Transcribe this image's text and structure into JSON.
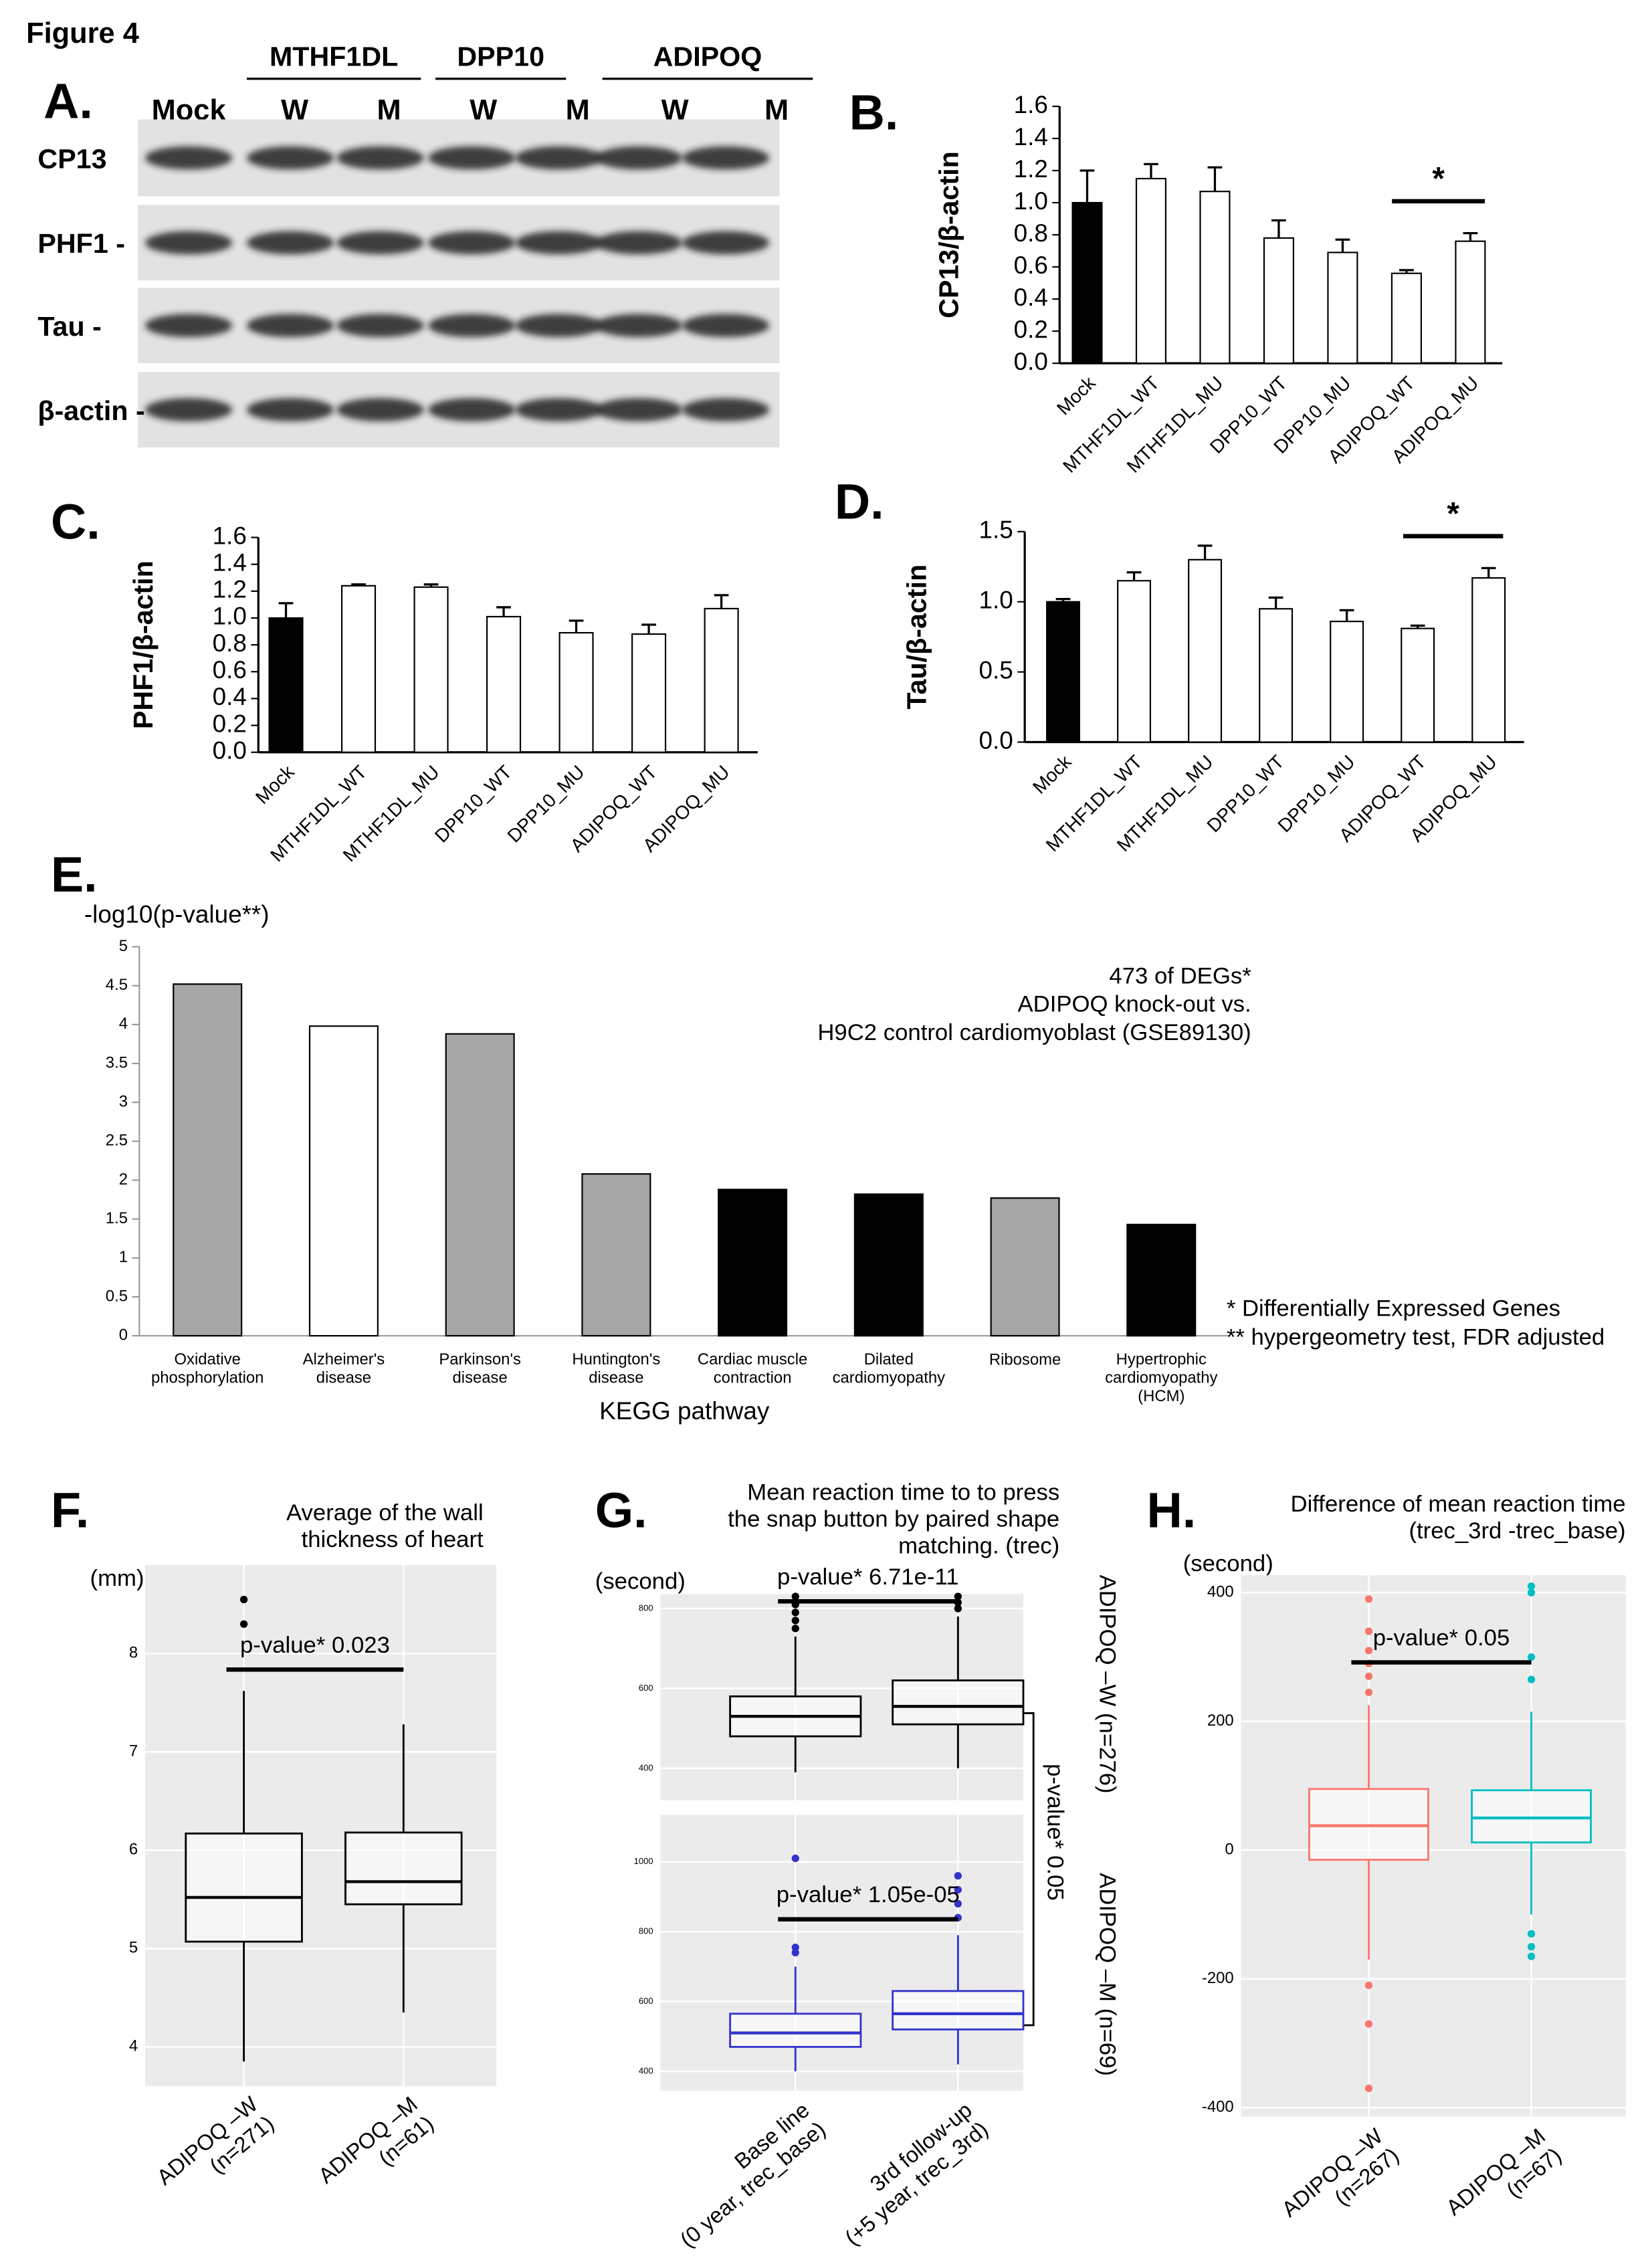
{
  "figure_title": "Figure 4",
  "blot": {
    "label": "A.",
    "groups": [
      "MTHF1DL",
      "DPP10",
      "ADIPOQ"
    ],
    "lanes": [
      "Mock",
      "W",
      "M",
      "W",
      "M",
      "W",
      "M"
    ],
    "rows": [
      "CP13",
      "PHF1 -",
      "Tau -",
      "β-actin -"
    ]
  },
  "chart_data": [
    {
      "type": "bar",
      "label": "B.",
      "ylabel": "CP13/β-actin",
      "categories": [
        "Mock",
        "MTHF1DL_WT",
        "MTHF1DL_MU",
        "DPP10_WT",
        "DPP10_MU",
        "ADIPOQ_WT",
        "ADIPOQ_MU"
      ],
      "values": [
        1.0,
        1.15,
        1.07,
        0.78,
        0.69,
        0.56,
        0.76
      ],
      "errors": [
        0.2,
        0.09,
        0.15,
        0.11,
        0.08,
        0.02,
        0.05
      ],
      "colors": [
        "#000000",
        "#ffffff",
        "#ffffff",
        "#ffffff",
        "#ffffff",
        "#ffffff",
        "#ffffff"
      ],
      "ylim": [
        0,
        1.6
      ],
      "yticks": [
        {
          "value": 0,
          "label": "0.0"
        },
        0.2,
        0.4,
        0.6,
        0.8,
        {
          "value": 1,
          "label": "1.0"
        },
        1.2,
        1.4,
        1.6
      ],
      "significance": {
        "label": "*",
        "categories": [
          "ADIPOQ_WT",
          "ADIPOQ_MU"
        ]
      }
    },
    {
      "type": "bar",
      "label": "C.",
      "ylabel": "PHF1/β-actin",
      "categories": [
        "Mock",
        "MTHF1DL_WT",
        "MTHF1DL_MU",
        "DPP10_WT",
        "DPP10_MU",
        "ADIPOQ_WT",
        "ADIPOQ_MU"
      ],
      "values": [
        1.0,
        1.24,
        1.23,
        1.01,
        0.89,
        0.88,
        1.07
      ],
      "errors": [
        0.11,
        0.01,
        0.02,
        0.07,
        0.09,
        0.07,
        0.1
      ],
      "colors": [
        "#000000",
        "#ffffff",
        "#ffffff",
        "#ffffff",
        "#ffffff",
        "#ffffff",
        "#ffffff"
      ],
      "ylim": [
        0,
        1.6
      ],
      "yticks": [
        {
          "value": 0,
          "label": "0.0"
        },
        0.2,
        0.4,
        0.6,
        0.8,
        {
          "value": 1,
          "label": "1.0"
        },
        1.2,
        1.4,
        1.6
      ]
    },
    {
      "type": "bar",
      "label": "D.",
      "ylabel": "Tau/β-actin",
      "categories": [
        "Mock",
        "MTHF1DL_WT",
        "MTHF1DL_MU",
        "DPP10_WT",
        "DPP10_MU",
        "ADIPOQ_WT",
        "ADIPOQ_MU"
      ],
      "values": [
        1.0,
        1.15,
        1.3,
        0.95,
        0.86,
        0.81,
        1.17
      ],
      "errors": [
        0.02,
        0.06,
        0.1,
        0.08,
        0.08,
        0.02,
        0.07
      ],
      "colors": [
        "#000000",
        "#ffffff",
        "#ffffff",
        "#ffffff",
        "#ffffff",
        "#ffffff",
        "#ffffff"
      ],
      "ylim": [
        0,
        1.5
      ],
      "yticks": [
        {
          "value": 0,
          "label": "0.0"
        },
        0.5,
        {
          "value": 1,
          "label": "1.0"
        },
        1.5
      ],
      "significance": {
        "label": "*",
        "categories": [
          "ADIPOQ_WT",
          "ADIPOQ_MU"
        ]
      }
    },
    {
      "type": "bar",
      "label": "E.",
      "ylabel": "-log10(p-value**)",
      "xlabel": "KEGG pathway",
      "categories": [
        "Oxidative\nphosphorylation",
        "Alzheimer's\ndisease",
        "Parkinson's\ndisease",
        "Huntington's\ndisease",
        "Cardiac muscle\ncontraction",
        "Dilated\ncardiomyopathy",
        "Ribosome",
        "Hypertrophic\ncardiomyopathy\n(HCM)"
      ],
      "values": [
        4.52,
        3.98,
        3.88,
        2.08,
        1.88,
        1.82,
        1.77,
        1.43
      ],
      "colors": [
        "#a6a6a6",
        "#ffffff",
        "#a6a6a6",
        "#a6a6a6",
        "#000000",
        "#000000",
        "#a6a6a6",
        "#000000"
      ],
      "ylim": [
        0,
        5
      ],
      "yticks": [
        0,
        0.5,
        1,
        1.5,
        2,
        2.5,
        3,
        3.5,
        4,
        4.5,
        5
      ],
      "annotations": [
        "473 of DEGs*",
        "ADIPOQ knock-out vs.",
        "H9C2 control cardiomyoblast (GSE89130)"
      ],
      "footnotes": [
        "* Differentially Expressed Genes",
        "** hypergeometry test, FDR adjusted"
      ]
    },
    {
      "type": "box",
      "label": "F.",
      "title": "Average of the wall\nthickness of heart",
      "ylabel": "(mm)",
      "categories": [
        "ADIPOQ –W\n(n=271)",
        "ADIPOQ –M\n(n=61)"
      ],
      "boxes": [
        {
          "whislo": 3.85,
          "q1": 5.07,
          "med": 5.52,
          "q3": 6.17,
          "whishi": 7.62,
          "fliers": [
            8.3,
            8.55
          ]
        },
        {
          "whislo": 4.35,
          "q1": 5.45,
          "med": 5.68,
          "q3": 6.18,
          "whishi": 7.28,
          "fliers": []
        }
      ],
      "colors": [
        "#000000",
        "#000000"
      ],
      "ylim": [
        3.6,
        8.9
      ],
      "yticks": [
        4,
        5,
        6,
        7,
        8
      ],
      "grid": true,
      "annotation": "p-value* 0.023"
    },
    {
      "type": "box",
      "label": "G.",
      "title": "Mean reaction time to to press\nthe snap button by paired shape\nmatching. (trec)",
      "ylabel": "(second)",
      "boxes": [
        {
          "whislo": 390,
          "q1": 480,
          "med": 530,
          "q3": 580,
          "whishi": 730,
          "fliers": [
            750,
            770,
            790,
            810,
            830
          ]
        },
        {
          "whislo": 400,
          "q1": 510,
          "med": 555,
          "q3": 620,
          "whishi": 780,
          "fliers": [
            800,
            815,
            830
          ]
        }
      ],
      "colors": [
        "#000000",
        "#000000"
      ],
      "ylim": [
        320,
        836
      ],
      "yticks": [
        400,
        600,
        800
      ],
      "grid": true,
      "annotation": "p-value* 6.71e-11",
      "side_label": "ADIPOQ –W (n=276)",
      "bracket_label": "p-value* 0.05"
    },
    {
      "type": "box",
      "categories": [
        "Base line\n(0 year, trec_base)",
        "3rd follow-up\n(+5 year, trec_3rd)"
      ],
      "boxes": [
        {
          "whislo": 400,
          "q1": 470,
          "med": 510,
          "q3": 565,
          "whishi": 700,
          "fliers": [
            740,
            755,
            1010
          ]
        },
        {
          "whislo": 420,
          "q1": 520,
          "med": 565,
          "q3": 630,
          "whishi": 790,
          "fliers": [
            840,
            880,
            920,
            960
          ]
        }
      ],
      "colors": [
        "#3333cc",
        "#3333cc"
      ],
      "ylim": [
        345,
        1135
      ],
      "yticks": [
        400,
        600,
        800,
        1000
      ],
      "grid": true,
      "annotation": "p-value* 1.05e-05",
      "side_label": "ADIPOQ –M (n=69)"
    },
    {
      "type": "box",
      "label": "H.",
      "title": "Difference of mean reaction time\n(trec_3rd -trec_base)",
      "ylabel": "(second)",
      "categories": [
        "ADIPOQ –W\n(n=267)",
        "ADIPOQ –M\n(n=67)"
      ],
      "boxes": [
        {
          "whislo": -170,
          "q1": -15,
          "med": 38,
          "q3": 95,
          "whishi": 225,
          "fliers": [
            245,
            270,
            290,
            310,
            340,
            390,
            -210,
            -270,
            -370
          ]
        },
        {
          "whislo": -100,
          "q1": 12,
          "med": 50,
          "q3": 93,
          "whishi": 215,
          "fliers": [
            265,
            300,
            400,
            410,
            -130,
            -150,
            -165
          ]
        }
      ],
      "colors": [
        "#f8766d",
        "#00bfc4"
      ],
      "ylim": [
        -414,
        427
      ],
      "yticks": [
        -400,
        -200,
        0,
        200,
        400
      ],
      "grid": true,
      "annotation": "p-value* 0.05"
    }
  ]
}
